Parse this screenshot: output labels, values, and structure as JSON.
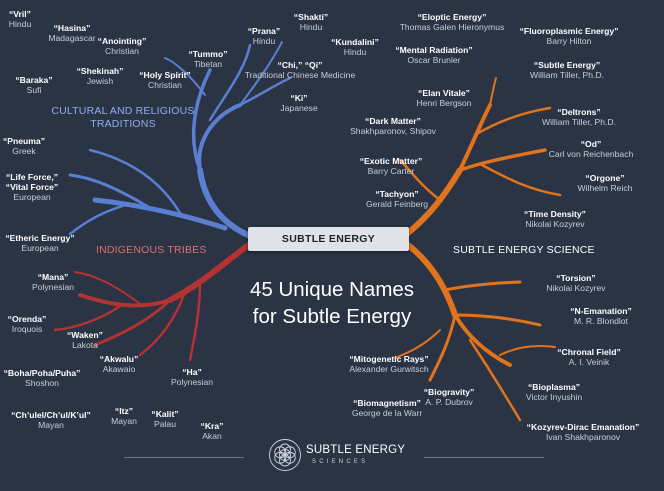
{
  "center_title": "SUBTLE ENERGY",
  "headline": [
    "45 Unique Names",
    "for Subtle Energy"
  ],
  "colors": {
    "background": "#2b3445",
    "cultural": "#5b7fd0",
    "indigenous": "#b33232",
    "science": "#e0731c"
  },
  "categories": {
    "cultural": "CULTURAL AND RELIGIOUS\nTRADITIONS",
    "indigenous": "INDIGENOUS TRIBES",
    "science": "SUBTLE ENERGY SCIENCE"
  },
  "entries": [
    {
      "name": "“Vril”",
      "origin": "Hindu"
    },
    {
      "name": "“Hasina”",
      "origin": "Madagascar"
    },
    {
      "name": "“Anointing”",
      "origin": "Christian"
    },
    {
      "name": "“Tummo”",
      "origin": "Tibetan"
    },
    {
      "name": "“Prana”",
      "origin": "Hindu"
    },
    {
      "name": "“Shakti”",
      "origin": "Hindu"
    },
    {
      "name": "“Kundalini”",
      "origin": "Hindu"
    },
    {
      "name": "“Baraka”",
      "origin": "Sufi"
    },
    {
      "name": "“Shekinah”",
      "origin": "Jewish"
    },
    {
      "name": "“Holy Spirit”",
      "origin": "Christian"
    },
    {
      "name": "“Chi,” “Qi”",
      "origin": "Traditional Chinese Medicine"
    },
    {
      "name": "“Ki”",
      "origin": "Japanese"
    },
    {
      "name": "“Pneuma”",
      "origin": "Greek"
    },
    {
      "name": "“Life Force,”\n“Vital Force”",
      "origin": "European"
    },
    {
      "name": "“Etheric Energy”",
      "origin": "European"
    },
    {
      "name": "“Mana”",
      "origin": "Polynesian"
    },
    {
      "name": "“Orenda”",
      "origin": "Iroquois"
    },
    {
      "name": "“Waken”",
      "origin": "Lakota"
    },
    {
      "name": "“Akwalu”",
      "origin": "Akawaio"
    },
    {
      "name": "“Ha”",
      "origin": "Polynesian"
    },
    {
      "name": "“Boha/Poha/Puha”",
      "origin": "Shoshon"
    },
    {
      "name": "“Itz”",
      "origin": "Mayan"
    },
    {
      "name": "“Kalit”",
      "origin": "Palau"
    },
    {
      "name": "“Kra”",
      "origin": "Akan"
    },
    {
      "name": "“Ch’ulel/Ch’ul/K’ul”",
      "origin": "Mayan"
    },
    {
      "name": "“Eloptic Energy”",
      "origin": "Thomas Galen Hieronymus"
    },
    {
      "name": "“Fluoroplasmic Energy”",
      "origin": "Barry Hilton"
    },
    {
      "name": "“Mental Radiation”",
      "origin": "Oscar Brunler"
    },
    {
      "name": "“Subtle Energy”",
      "origin": "William Tiller, Ph.D."
    },
    {
      "name": "“Elan Vitale”",
      "origin": "Henri Bergson"
    },
    {
      "name": "“Dark Matter”",
      "origin": "Shakhparonov, Shipov"
    },
    {
      "name": "“Deltrons”",
      "origin": "William Tiller, Ph.D."
    },
    {
      "name": "“Od”",
      "origin": "Carl von Reichenbach"
    },
    {
      "name": "“Exotic Matter”",
      "origin": "Barry Carter"
    },
    {
      "name": "“Orgone”",
      "origin": "Wilhelm Reich"
    },
    {
      "name": "“Tachyon”",
      "origin": "Gerald Feinberg"
    },
    {
      "name": "“Time Density”",
      "origin": "Nikolai Kozyrev"
    },
    {
      "name": "“Torsion”",
      "origin": "Nikolai Kozyrev"
    },
    {
      "name": "“N-Emanation”",
      "origin": "M. R. Blondlot"
    },
    {
      "name": "“Chronal Field”",
      "origin": "A. I. Veinik"
    },
    {
      "name": "“Mitogenetic Rays”",
      "origin": "Alexander Gurwitsch"
    },
    {
      "name": "“Bioplasma”",
      "origin": "Victor Inyushin"
    },
    {
      "name": "“Biogravity”",
      "origin": "A. P. Dubrov"
    },
    {
      "name": "“Biomagnetism”",
      "origin": "George de la Warr"
    },
    {
      "name": "“Kozyrev-Dirac Emanation”",
      "origin": "Ivan Shakhparonov"
    }
  ],
  "logo": {
    "line1": "SUBTLE ENERGY",
    "line2": "SCIENCES"
  }
}
